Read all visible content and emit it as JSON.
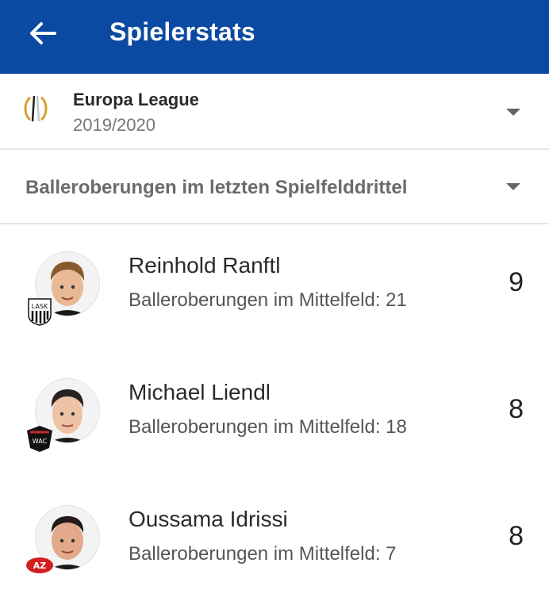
{
  "appbar": {
    "title": "Spielerstats",
    "back_icon": "arrow-left-icon"
  },
  "competition": {
    "name": "Europa League",
    "season": "2019/2020",
    "logo_icon": "europa-league-logo-icon"
  },
  "stat_selector": {
    "label": "Balleroberungen im letzten Spielfelddrittel"
  },
  "players": [
    {
      "name": "Reinhold Ranftl",
      "detail": "Balleroberungen im Mittelfeld: 21",
      "value": "9",
      "club": "LASK"
    },
    {
      "name": "Michael Liendl",
      "detail": "Balleroberungen im Mittelfeld: 18",
      "value": "8",
      "club": "WAC"
    },
    {
      "name": "Oussama Idrissi",
      "detail": "Balleroberungen im Mittelfeld: 7",
      "value": "8",
      "club": "AZ"
    }
  ],
  "colors": {
    "appbar": "#0b4aa2",
    "divider": "#e6e6e6",
    "secondary_text": "#777777"
  }
}
